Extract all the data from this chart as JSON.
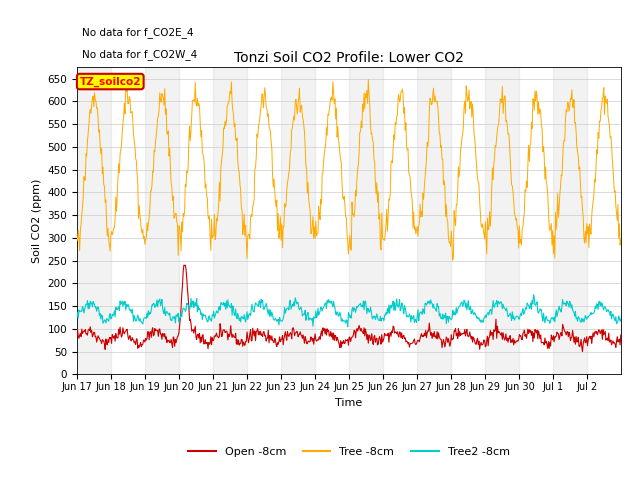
{
  "title": "Tonzi Soil CO2 Profile: Lower CO2",
  "xlabel": "Time",
  "ylabel": "Soil CO2 (ppm)",
  "ylim": [
    0,
    675
  ],
  "yticks": [
    0,
    50,
    100,
    150,
    200,
    250,
    300,
    350,
    400,
    450,
    500,
    550,
    600,
    650
  ],
  "annotation1": "No data for f_CO2E_4",
  "annotation2": "No data for f_CO2W_4",
  "legend_box_label": "TZ_soilco2",
  "legend_box_color": "#ffff00",
  "legend_box_edge": "#cc0000",
  "colors": {
    "open": "#cc0000",
    "tree": "#ffaa00",
    "tree2": "#00cccc"
  },
  "legend_labels": [
    "Open -8cm",
    "Tree -8cm",
    "Tree2 -8cm"
  ],
  "shading_alpha": 0.1,
  "background_color": "#ffffff",
  "grid_color": "#cccccc"
}
